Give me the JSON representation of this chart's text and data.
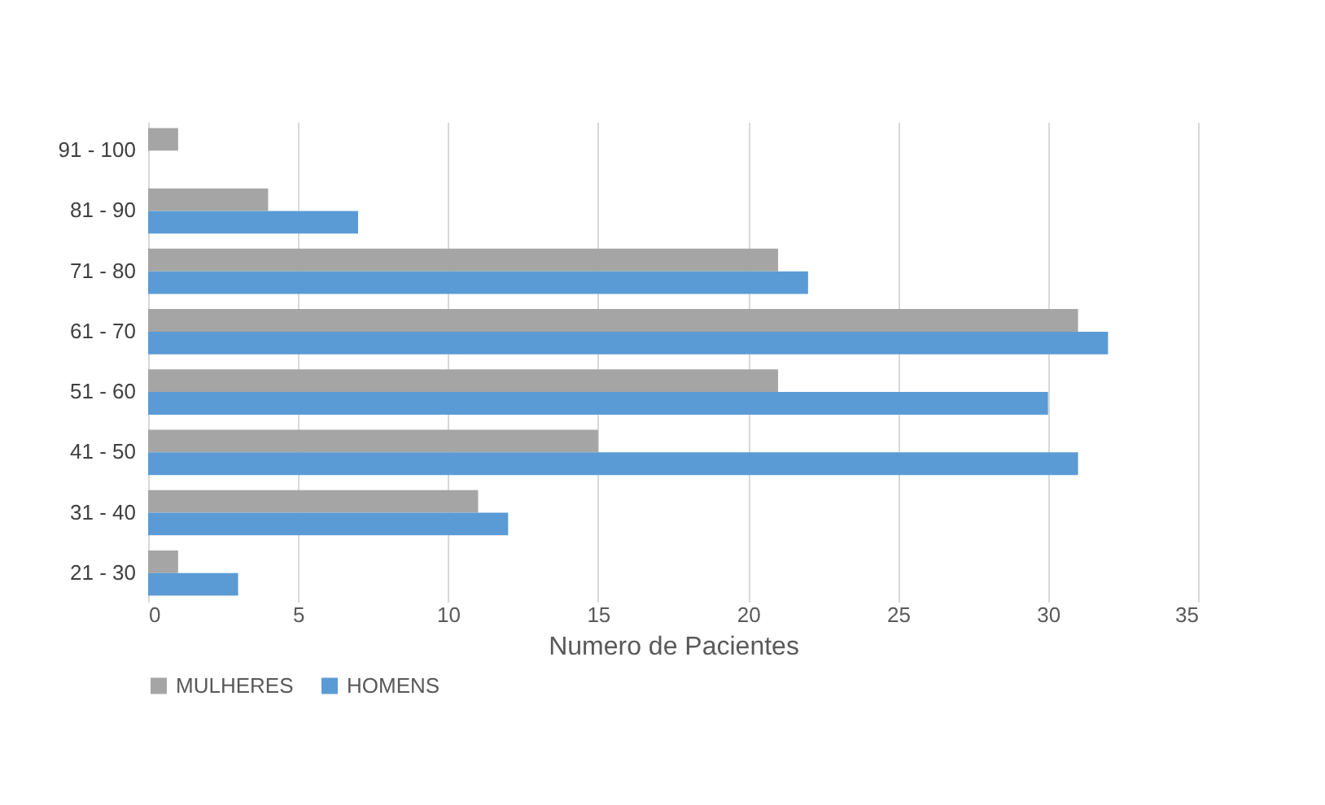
{
  "chart_data": {
    "type": "bar",
    "orientation": "horizontal",
    "xlabel": "Numero de Pacientes",
    "categories": [
      "91 - 100",
      "81 - 90",
      "71 - 80",
      "61 - 70",
      "51 - 60",
      "41 - 50",
      "31 - 40",
      "21 - 30"
    ],
    "series": [
      {
        "name": "MULHERES",
        "color": "#a5a5a5",
        "values": [
          1,
          4,
          21,
          31,
          21,
          15,
          11,
          1
        ]
      },
      {
        "name": "HOMENS",
        "color": "#5b9bd5",
        "values": [
          0,
          7,
          22,
          32,
          30,
          31,
          12,
          3
        ]
      }
    ],
    "xlim": [
      0,
      35
    ],
    "xticks": [
      0,
      5,
      10,
      15,
      20,
      25,
      30,
      35
    ],
    "grid": "x",
    "legend": "bottom"
  }
}
